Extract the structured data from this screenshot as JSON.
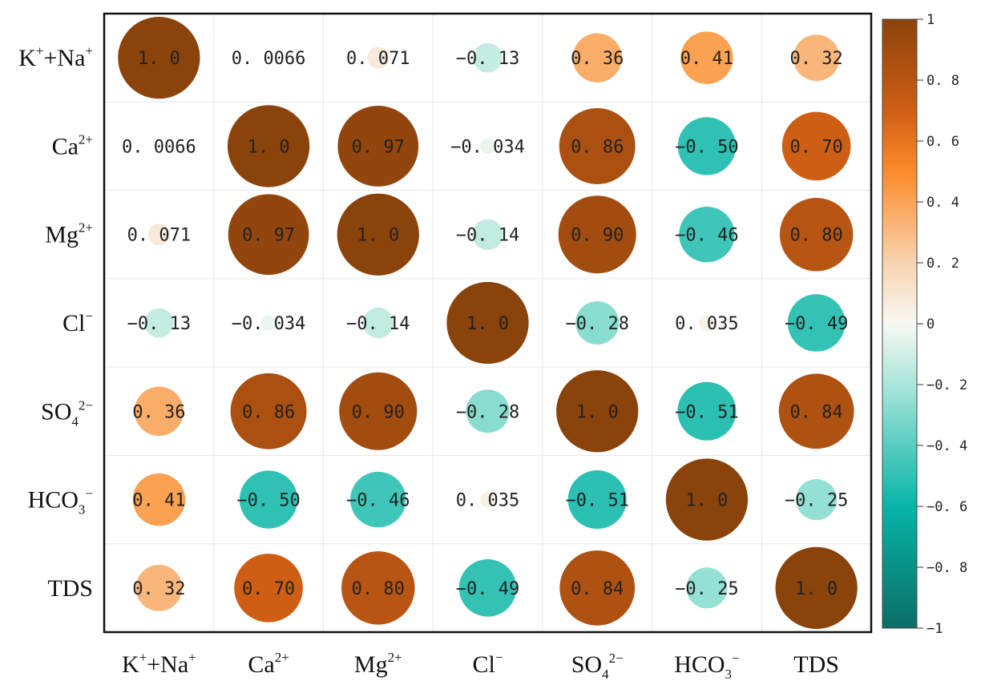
{
  "chart_data": {
    "type": "heatmap",
    "style": "circle-correlation-matrix",
    "variables": [
      {
        "base": "K",
        "sup": "+",
        "base2": "+Na",
        "sup2": "+",
        "sub": ""
      },
      {
        "base": "Ca",
        "sup": "2+",
        "base2": "",
        "sup2": "",
        "sub": ""
      },
      {
        "base": "Mg",
        "sup": "2+",
        "base2": "",
        "sup2": "",
        "sub": ""
      },
      {
        "base": "Cl",
        "sup": "−",
        "base2": "",
        "sup2": "",
        "sub": ""
      },
      {
        "base": "SO",
        "sub": "4",
        "sup": "2−",
        "base2": "",
        "sup2": ""
      },
      {
        "base": "HCO",
        "sub": "3",
        "sup": "−",
        "base2": "",
        "sup2": ""
      },
      {
        "base": "TDS",
        "sup": "",
        "base2": "",
        "sup2": "",
        "sub": ""
      }
    ],
    "matrix": [
      [
        1.0,
        0.0066,
        0.071,
        -0.13,
        0.36,
        0.41,
        0.32
      ],
      [
        0.0066,
        1.0,
        0.97,
        -0.034,
        0.86,
        -0.5,
        0.7
      ],
      [
        0.071,
        0.97,
        1.0,
        -0.14,
        0.9,
        -0.46,
        0.8
      ],
      [
        -0.13,
        -0.034,
        -0.14,
        1.0,
        -0.28,
        0.035,
        -0.49
      ],
      [
        0.36,
        0.86,
        0.9,
        -0.28,
        1.0,
        -0.51,
        0.84
      ],
      [
        0.41,
        -0.5,
        -0.46,
        0.035,
        -0.51,
        1.0,
        -0.25
      ],
      [
        0.32,
        0.7,
        0.8,
        -0.49,
        0.84,
        -0.25,
        1.0
      ]
    ],
    "labels": [
      [
        "1. 0",
        "0. 0066",
        "0. 071",
        "−0. 13",
        "0. 36",
        "0. 41",
        "0. 32"
      ],
      [
        "0. 0066",
        "1. 0",
        "0. 97",
        "−0. 034",
        "0. 86",
        "−0. 50",
        "0. 70"
      ],
      [
        "0. 071",
        "0. 97",
        "1. 0",
        "−0. 14",
        "0. 90",
        "−0. 46",
        "0. 80"
      ],
      [
        "−0. 13",
        "−0. 034",
        "−0. 14",
        "1. 0",
        "−0. 28",
        "0. 035",
        "−0. 49"
      ],
      [
        "0. 36",
        "0. 86",
        "0. 90",
        "−0. 28",
        "1. 0",
        "−0. 51",
        "0. 84"
      ],
      [
        "0. 41",
        "−0. 50",
        "−0. 46",
        "0. 035",
        "−0. 51",
        "1. 0",
        "−0. 25"
      ],
      [
        "0. 32",
        "0. 70",
        "0. 80",
        "−0. 49",
        "0. 84",
        "−0. 25",
        "1. 0"
      ]
    ],
    "colorbar": {
      "range": [
        -1,
        1
      ],
      "ticks": [
        "1",
        "0. 8",
        "0. 6",
        "0. 4",
        "0. 2",
        "0",
        "−0. 2",
        "−0. 4",
        "−0. 6",
        "−0. 8",
        "−1"
      ],
      "stops": [
        {
          "v": -1.0,
          "c": "#0b6e66"
        },
        {
          "v": -0.6,
          "c": "#07b5a7"
        },
        {
          "v": -0.2,
          "c": "#a9e6da"
        },
        {
          "v": 0.0,
          "c": "#f8f7f2"
        },
        {
          "v": 0.2,
          "c": "#f8d3b0"
        },
        {
          "v": 0.5,
          "c": "#fb8b2a"
        },
        {
          "v": 0.7,
          "c": "#cf5e15"
        },
        {
          "v": 1.0,
          "c": "#8b430c"
        }
      ]
    }
  }
}
